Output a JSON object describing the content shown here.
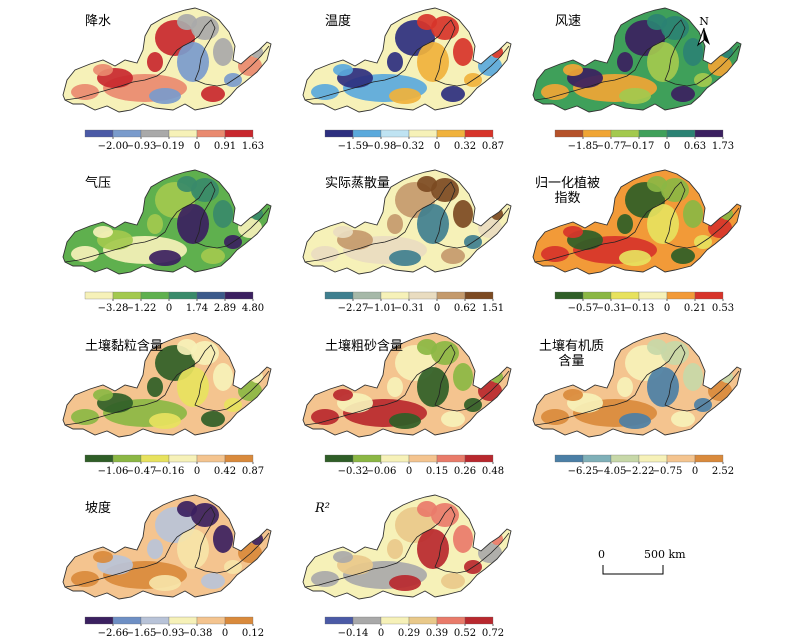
{
  "colors": {
    "outline": "#333333",
    "river": "#222222"
  },
  "panels": [
    {
      "id": "precip",
      "title": "降水",
      "legend_colors": [
        "#4b5aa6",
        "#7a9bcc",
        "#a9a9a9",
        "#f6f1b8",
        "#e98a6f",
        "#c8282e"
      ],
      "legend_ticks": [
        "−2.00",
        "−0.93",
        "−0.19",
        "0",
        "0.91",
        "1.63"
      ],
      "map_colors": [
        "#f6f1b8",
        "#e98a6f",
        "#c8282e",
        "#a9a9a9",
        "#7a9bcc"
      ]
    },
    {
      "id": "temperature",
      "title": "温度",
      "legend_colors": [
        "#2d2f7f",
        "#5aa9dc",
        "#bfe3f2",
        "#f6f1b8",
        "#f0b23c",
        "#d7342a"
      ],
      "legend_ticks": [
        "−1.59",
        "−0.98",
        "−0.32",
        "0",
        "0.32",
        "0.87"
      ],
      "map_colors": [
        "#f6f1b8",
        "#f0b23c",
        "#5aa9dc",
        "#2d2f7f",
        "#d7342a"
      ]
    },
    {
      "id": "windspeed",
      "title": "风速",
      "legend_colors": [
        "#b5522a",
        "#f0a535",
        "#a3c94e",
        "#3fa05a",
        "#2b8273",
        "#3b2060"
      ],
      "legend_ticks": [
        "−1.85",
        "−0.77",
        "−0.17",
        "0",
        "0.63",
        "1.73"
      ],
      "map_colors": [
        "#3fa05a",
        "#2b8273",
        "#a3c94e",
        "#f0a535",
        "#3b2060"
      ]
    },
    {
      "id": "pressure",
      "title": "气压",
      "legend_colors": [
        "#f6f1b8",
        "#a3c94e",
        "#5fb04e",
        "#3a8a6a",
        "#3c5a8a",
        "#3b2060"
      ],
      "legend_ticks": [
        "−3.28",
        "−1.22",
        "0",
        "1.74",
        "2.89",
        "4.80"
      ],
      "map_colors": [
        "#5fb04e",
        "#a3c94e",
        "#3a8a6a",
        "#3b2060",
        "#f6f1b8"
      ]
    },
    {
      "id": "evapotranspiration",
      "title": "实际蒸散量",
      "legend_colors": [
        "#3f7f8f",
        "#a6b8a8",
        "#f6f1b8",
        "#e9dcc0",
        "#c49a6c",
        "#7c4a22"
      ],
      "legend_ticks": [
        "−2.27",
        "−1.01",
        "−0.31",
        "0",
        "0.62",
        "1.51"
      ],
      "map_colors": [
        "#f6f1b8",
        "#e9dcc0",
        "#c49a6c",
        "#7c4a22",
        "#3f7f8f"
      ]
    },
    {
      "id": "ndvi",
      "title": "归一化植被\n指数",
      "legend_colors": [
        "#2f5e27",
        "#8bb744",
        "#e7e25e",
        "#f6f1b8",
        "#f29a38",
        "#d7342a"
      ],
      "legend_ticks": [
        "−0.57",
        "−0.31",
        "−0.13",
        "0",
        "0.21",
        "0.53"
      ],
      "map_colors": [
        "#f29a38",
        "#e7e25e",
        "#d7342a",
        "#2f5e27",
        "#8bb744"
      ]
    },
    {
      "id": "clay",
      "title": "土壤黏粒含量",
      "legend_colors": [
        "#2f5e27",
        "#8bb744",
        "#e7e25e",
        "#f6f1b8",
        "#f4c48f",
        "#d98a3c"
      ],
      "legend_ticks": [
        "−1.06",
        "−0.47",
        "−0.16",
        "0",
        "0.42",
        "0.87"
      ],
      "map_colors": [
        "#f4c48f",
        "#f6f1b8",
        "#e7e25e",
        "#8bb744",
        "#2f5e27"
      ]
    },
    {
      "id": "sand",
      "title": "土壤粗砂含量",
      "legend_colors": [
        "#2f5e27",
        "#8bb744",
        "#f6f1b8",
        "#f4c48f",
        "#e97b6a",
        "#b8282e"
      ],
      "legend_ticks": [
        "−0.32",
        "−0.06",
        "0",
        "0.15",
        "0.26",
        "0.48"
      ],
      "map_colors": [
        "#f4c48f",
        "#f6f1b8",
        "#8bb744",
        "#2f5e27",
        "#b8282e"
      ]
    },
    {
      "id": "organic",
      "title": "土壤有机质\n含量",
      "legend_colors": [
        "#4b7fa6",
        "#7fb0b8",
        "#c7d8a8",
        "#f6f1b8",
        "#f4c48f",
        "#d98a3c"
      ],
      "legend_ticks": [
        "−6.25",
        "−4.05",
        "−2.22",
        "−0.75",
        "0",
        "2.52"
      ],
      "map_colors": [
        "#f4c48f",
        "#d98a3c",
        "#f6f1b8",
        "#c7d8a8",
        "#4b7fa6"
      ]
    },
    {
      "id": "slope",
      "title": "坡度",
      "legend_colors": [
        "#3b2060",
        "#6e8fc4",
        "#b8c3d8",
        "#f6f1b8",
        "#f4c48f",
        "#d98a3c"
      ],
      "legend_ticks": [
        "−2.66",
        "−1.65",
        "−0.93",
        "−0.38",
        "0",
        "0.12"
      ],
      "map_colors": [
        "#f4c48f",
        "#f6e4a8",
        "#d98a3c",
        "#b8c3d8",
        "#3b2060"
      ]
    },
    {
      "id": "r2",
      "title": "R²",
      "title_italic": true,
      "legend_colors": [
        "#4b5aa6",
        "#a9a9a9",
        "#f6f1b8",
        "#e9c98a",
        "#e97b6a",
        "#b8282e"
      ],
      "legend_ticks": [
        "−0.14",
        "0",
        "0.29",
        "0.39",
        "0.52",
        "0.72"
      ],
      "map_colors": [
        "#f6f1b8",
        "#e97b6a",
        "#b8282e",
        "#a9a9a9",
        "#e9c98a"
      ]
    }
  ],
  "north_arrow": {
    "label": "N"
  },
  "scale_bar": {
    "start": "0",
    "end": "500 km"
  }
}
